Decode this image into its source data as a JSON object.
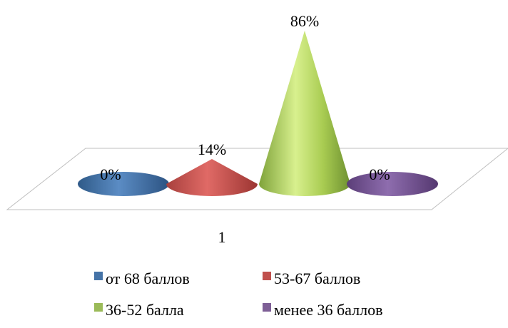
{
  "chart_data": {
    "type": "cone",
    "categories": [
      "1"
    ],
    "series": [
      {
        "name": "от 68 баллов",
        "value": 0,
        "label": "0%",
        "color": "#4573A7"
      },
      {
        "name": "53-67 баллов",
        "value": 14,
        "label": "14%",
        "color": "#C0504D"
      },
      {
        "name": "36-52 балла",
        "value": 86,
        "label": "86%",
        "color": "#9BBB59"
      },
      {
        "name": "менее 36 баллов",
        "value": 0,
        "label": "0%",
        "color": "#7E5F96"
      }
    ],
    "title": "",
    "xlabel": "",
    "ylabel": "",
    "ylim": [
      0,
      100
    ],
    "grid": false,
    "legend_position": "bottom"
  }
}
